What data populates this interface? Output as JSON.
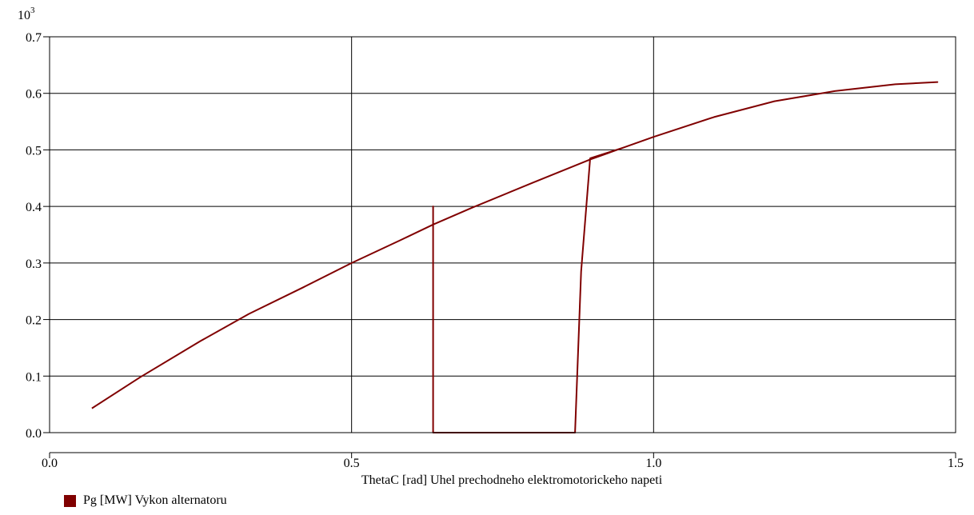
{
  "chart_data": {
    "type": "line",
    "title": "",
    "xlabel": "ThetaC [rad] Uhel prechodneho elektromotorickeho napeti",
    "ylabel": "",
    "y_multiplier_label": "10",
    "y_multiplier_exponent": "3",
    "xlim": [
      0.0,
      1.5
    ],
    "ylim": [
      0.0,
      0.7
    ],
    "x_ticks": [
      0.0,
      0.5,
      1.0,
      1.5
    ],
    "x_tick_labels": [
      "0.0",
      "0.5",
      "1.0",
      "1.5"
    ],
    "y_ticks": [
      0.0,
      0.1,
      0.2,
      0.3,
      0.4,
      0.5,
      0.6,
      0.7
    ],
    "y_tick_labels": [
      "0.0",
      "0.1",
      "0.2",
      "0.3",
      "0.4",
      "0.5",
      "0.6",
      "0.7"
    ],
    "grid": true,
    "legend_position": "bottom-left",
    "series": [
      {
        "name": "Pg [MW] Vykon alternatoru",
        "color": "#800000",
        "x": [
          0.07,
          0.15,
          0.25,
          0.33,
          0.42,
          0.5,
          0.58,
          0.635,
          0.7,
          0.8,
          0.895,
          0.95,
          1.0,
          1.1,
          1.2,
          1.3,
          1.4,
          1.47,
          1.47,
          1.4,
          1.3,
          1.2,
          1.1,
          1.0,
          0.95,
          0.895,
          0.88,
          0.87,
          0.635,
          0.635,
          0.635,
          0.58,
          0.5,
          0.42,
          0.33,
          0.25,
          0.15,
          0.07
        ],
        "y": [
          0.043,
          0.098,
          0.162,
          0.21,
          0.257,
          0.3,
          0.34,
          0.368,
          0.398,
          0.442,
          0.483,
          0.504,
          0.523,
          0.558,
          0.586,
          0.604,
          0.616,
          0.62,
          0.62,
          0.616,
          0.604,
          0.586,
          0.558,
          0.523,
          0.504,
          0.485,
          0.285,
          0.0,
          0.0,
          0.4,
          0.368,
          0.34,
          0.3,
          0.257,
          0.21,
          0.162,
          0.098,
          0.043
        ]
      }
    ]
  }
}
